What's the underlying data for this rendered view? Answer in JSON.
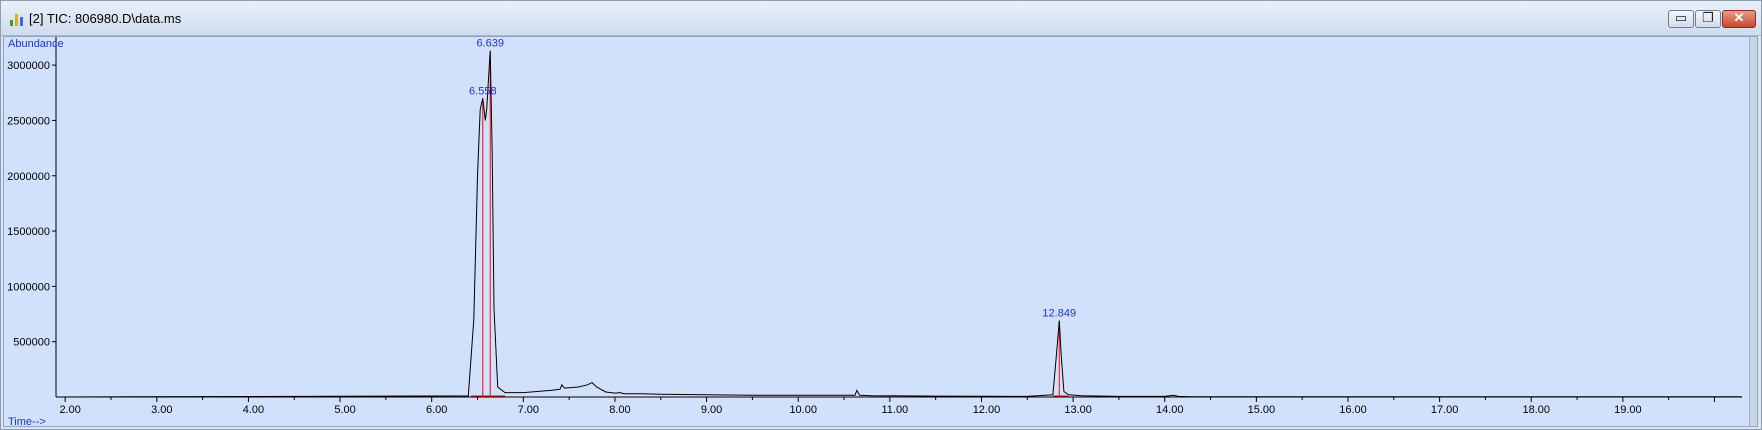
{
  "window": {
    "title": "[2] TIC: 806980.D\\data.ms",
    "icon": "chromatogram-app-icon",
    "controls": {
      "minimize": "▭",
      "restore": "❐",
      "close": "✕"
    }
  },
  "colors": {
    "background": "#d2e1fb",
    "trace": "#000000",
    "baseline": "#ff0000",
    "labels": "#1f33c9"
  },
  "chart_data": {
    "type": "line",
    "ylabel": "Abundance",
    "xlabel": "Time-->",
    "xlim": [
      1.9,
      20.3
    ],
    "ylim": [
      0,
      3200000
    ],
    "y_ticks": [
      500000,
      1000000,
      1500000,
      2000000,
      2500000,
      3000000
    ],
    "y_tick_labels": [
      "500000",
      "1000000",
      "1500000",
      "2000000",
      "2500000",
      "3000000"
    ],
    "x_ticks": [
      2,
      3,
      4,
      5,
      6,
      7,
      8,
      9,
      10,
      11,
      12,
      13,
      14,
      15,
      16,
      17,
      18,
      19
    ],
    "x_tick_labels": [
      "2.00",
      "3.00",
      "4.00",
      "5.00",
      "6.00",
      "7.00",
      "8.00",
      "9.00",
      "10.00",
      "11.00",
      "12.00",
      "13.00",
      "14.00",
      "15.00",
      "16.00",
      "17.00",
      "18.00",
      "19.00"
    ],
    "grid": false,
    "series": [
      {
        "x": [
          1.9,
          6.4,
          6.46,
          6.5,
          6.53,
          6.558,
          6.585,
          6.6,
          6.639,
          6.66,
          6.68,
          6.72,
          6.8,
          7.0,
          7.3,
          7.4,
          7.42,
          7.45,
          7.6,
          7.7,
          7.75,
          7.8,
          7.9,
          8.0,
          8.06,
          8.1,
          8.3,
          8.5,
          9.0,
          9.5,
          10.0,
          10.5,
          10.62,
          10.64,
          10.67,
          10.8,
          11.5,
          12.0,
          12.5,
          12.78,
          12.82,
          12.849,
          12.87,
          12.9,
          12.95,
          13.1,
          13.5,
          14.0,
          14.1,
          14.15,
          14.3,
          15.0,
          16.0,
          17.0,
          18.0,
          19.0,
          20.0,
          20.3
        ],
        "y": [
          0,
          10000,
          700000,
          2000000,
          2600000,
          2700000,
          2500000,
          2600000,
          3130000,
          2200000,
          800000,
          90000,
          40000,
          40000,
          60000,
          70000,
          110000,
          80000,
          90000,
          110000,
          130000,
          90000,
          45000,
          35000,
          40000,
          30000,
          30000,
          25000,
          20000,
          15000,
          15000,
          15000,
          15000,
          60000,
          15000,
          12000,
          8000,
          6000,
          5000,
          20000,
          400000,
          690000,
          380000,
          50000,
          20000,
          12000,
          5000,
          5000,
          15000,
          5000,
          3000,
          2000,
          2000,
          2000,
          2000,
          2000,
          2000,
          2000
        ]
      }
    ],
    "peaks": [
      {
        "rt": 6.558,
        "label": "6.558",
        "height": 2700000
      },
      {
        "rt": 6.639,
        "label": "6.639",
        "height": 3130000
      },
      {
        "rt": 12.849,
        "label": "12.849",
        "height": 690000
      }
    ],
    "integration_baselines": [
      {
        "start": 6.43,
        "end": 6.8
      },
      {
        "start": 12.78,
        "end": 12.95
      }
    ]
  }
}
